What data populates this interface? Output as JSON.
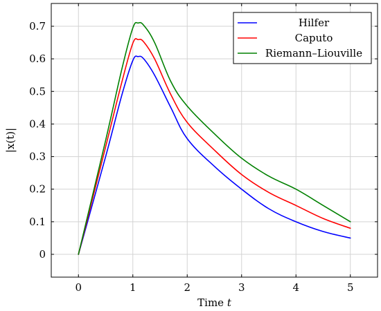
{
  "chart_data": {
    "type": "line",
    "title": "",
    "xlabel": "Time",
    "xlabel_var": "t",
    "ylabel": "|x(t)|",
    "xlim": [
      -0.5,
      5.5
    ],
    "ylim": [
      -0.07,
      0.77
    ],
    "xticks": [
      0,
      1,
      2,
      3,
      4,
      5
    ],
    "yticks": [
      0,
      0.1,
      0.2,
      0.3,
      0.4,
      0.5,
      0.6,
      0.7
    ],
    "xtick_labels": [
      "0",
      "1",
      "2",
      "3",
      "4",
      "5"
    ],
    "ytick_labels": [
      "0",
      "0.1",
      "0.2",
      "0.3",
      "0.4",
      "0.5",
      "0.6",
      "0.7"
    ],
    "grid": true,
    "legend_position": "top-right",
    "x": [
      0,
      0.5,
      0.8,
      1.0,
      1.1,
      1.2,
      1.4,
      1.7,
      2.0,
      2.5,
      3.0,
      3.5,
      4.0,
      4.5,
      5.0
    ],
    "series": [
      {
        "name": "Hilfer",
        "color": "#0000ff",
        "values": [
          0,
          0.3,
          0.49,
          0.595,
          0.607,
          0.6,
          0.55,
          0.45,
          0.355,
          0.27,
          0.2,
          0.14,
          0.1,
          0.07,
          0.05
        ]
      },
      {
        "name": "Caputo",
        "color": "#ff0000",
        "values": [
          0,
          0.33,
          0.53,
          0.648,
          0.659,
          0.652,
          0.6,
          0.49,
          0.405,
          0.32,
          0.245,
          0.19,
          0.15,
          0.11,
          0.08
        ]
      },
      {
        "name": "Riemann–Liouville",
        "color": "#008000",
        "values": [
          0,
          0.35,
          0.57,
          0.695,
          0.71,
          0.703,
          0.65,
          0.53,
          0.455,
          0.37,
          0.295,
          0.24,
          0.2,
          0.15,
          0.1
        ]
      }
    ]
  }
}
